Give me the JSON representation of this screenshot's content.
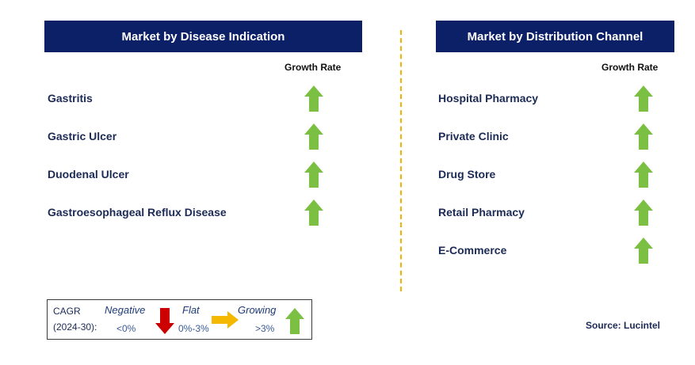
{
  "left_panel": {
    "title": "Market by Disease Indication",
    "column_header": "Growth Rate",
    "rows": [
      {
        "label": "Gastritis",
        "trend": "growing"
      },
      {
        "label": "Gastric Ulcer",
        "trend": "growing"
      },
      {
        "label": "Duodenal Ulcer",
        "trend": "growing"
      },
      {
        "label": "Gastroesophageal Reflux Disease",
        "trend": "growing"
      }
    ]
  },
  "right_panel": {
    "title": "Market by Distribution Channel",
    "column_header": "Growth Rate",
    "rows": [
      {
        "label": "Hospital Pharmacy",
        "trend": "growing"
      },
      {
        "label": "Private Clinic",
        "trend": "growing"
      },
      {
        "label": "Drug Store",
        "trend": "growing"
      },
      {
        "label": "Retail Pharmacy",
        "trend": "growing"
      },
      {
        "label": "E-Commerce",
        "trend": "growing"
      }
    ]
  },
  "legend": {
    "cagr_label": "CAGR",
    "period": "(2024-30):",
    "negative": {
      "label": "Negative",
      "range": "<0%",
      "icon": "down-arrow-icon",
      "color": "#cc0000"
    },
    "flat": {
      "label": "Flat",
      "range": "0%-3%",
      "icon": "right-arrow-icon",
      "color": "#f5b800"
    },
    "growing": {
      "label": "Growing",
      "range": ">3%",
      "icon": "up-arrow-icon",
      "color": "#7cc043"
    }
  },
  "source": "Source: Lucintel",
  "colors": {
    "header_bg": "#0c2068",
    "up_arrow": "#7cc043",
    "divider": "#f0b400"
  }
}
